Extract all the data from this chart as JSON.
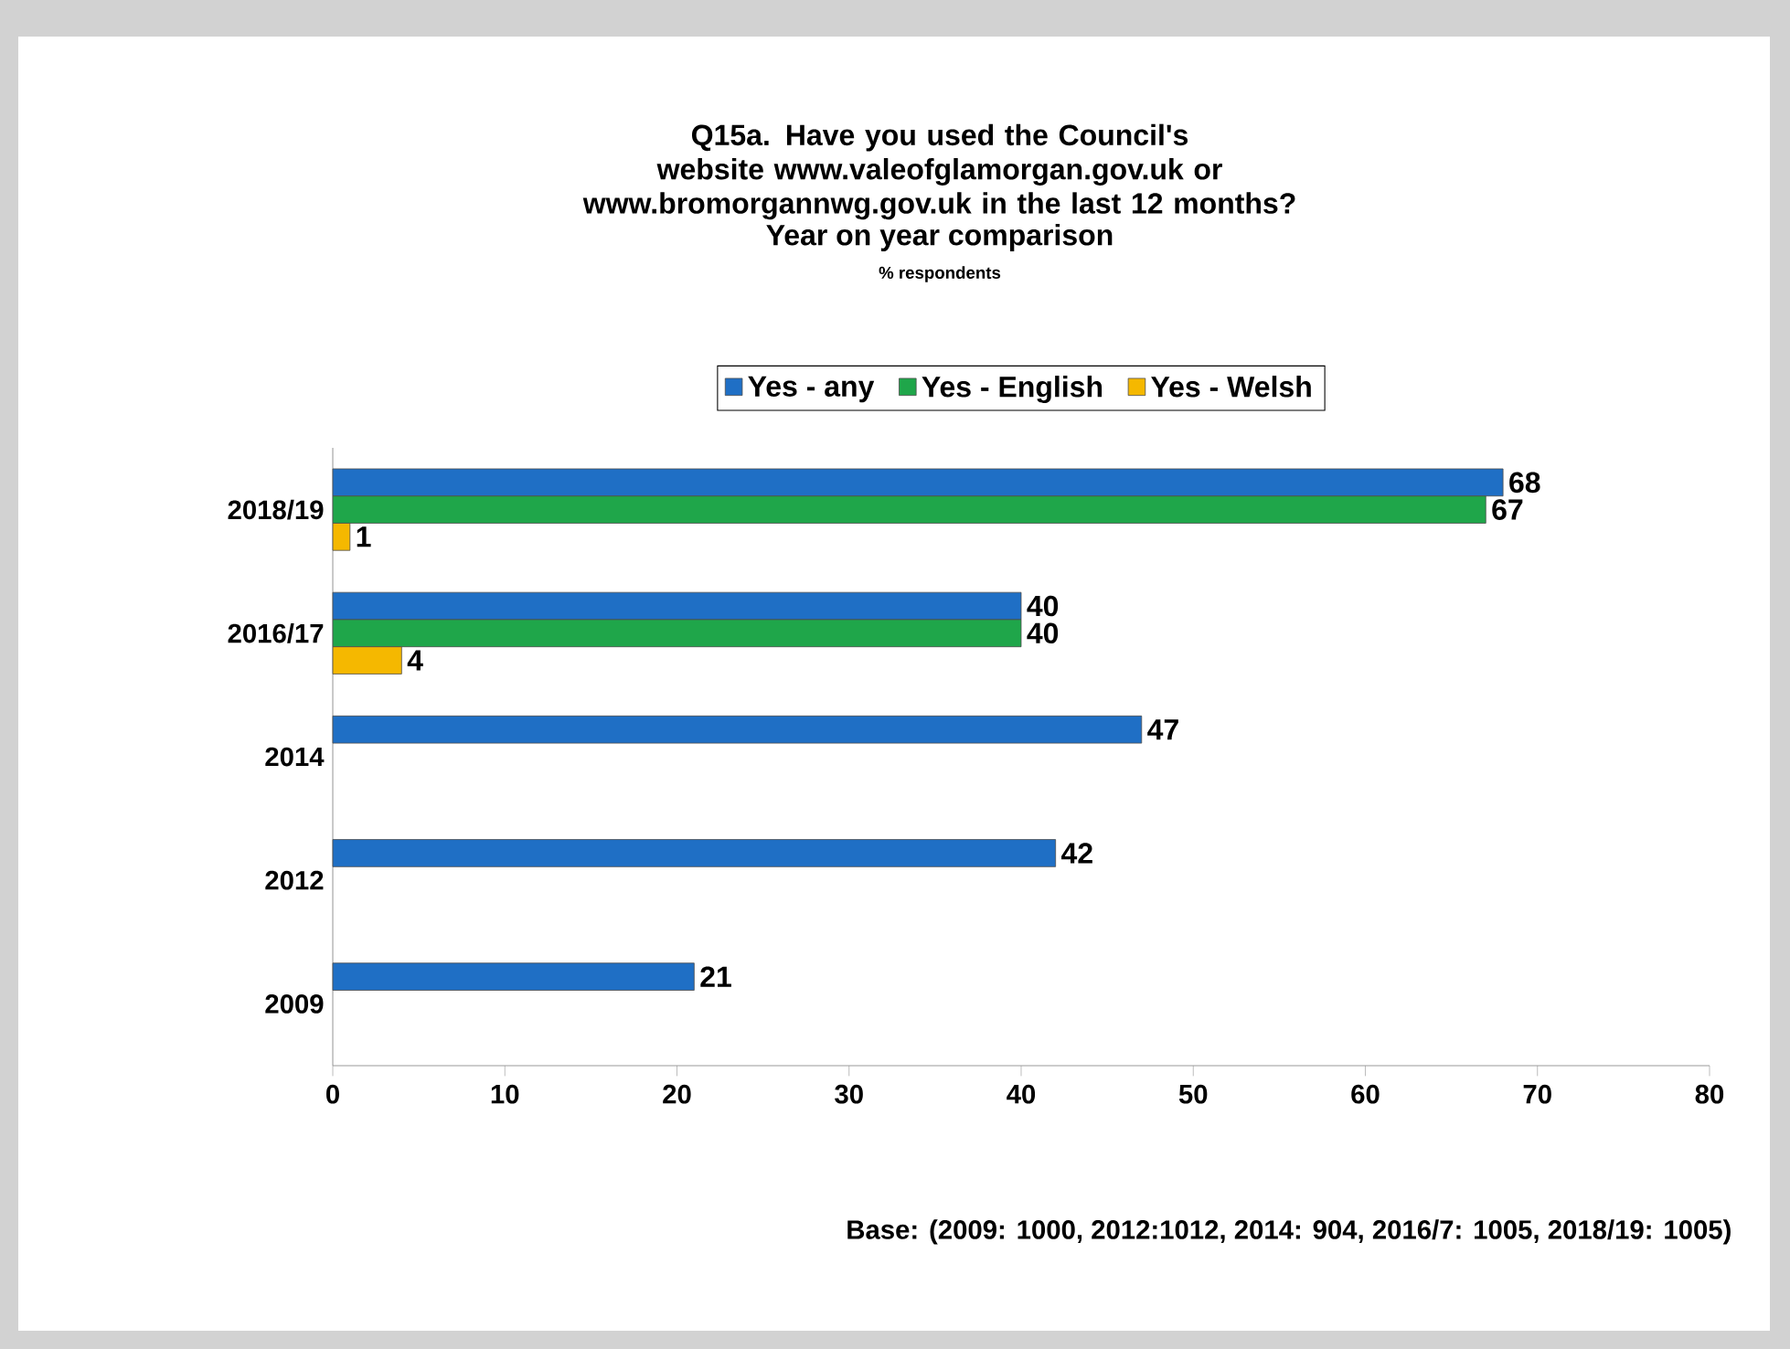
{
  "chart_data": {
    "type": "bar",
    "orientation": "horizontal",
    "title": "Q15a. Have you used the Council's website www.valeofglamorgan.gov.uk or www.bromorgannwg.gov.uk in the last 12 months?",
    "subtitle": "Year on year comparison",
    "annotations": [
      "% respondents",
      "Base: (2009: 1000, 2012:1012, 2014: 904, 2016/7: 1005, 2018/19: 1005)"
    ],
    "categories": [
      "2018/19",
      "2016/17",
      "2014",
      "2012",
      "2009"
    ],
    "series": [
      {
        "name": "Yes - any",
        "color": "#1f6fc5",
        "values": [
          68,
          40,
          47,
          42,
          21
        ]
      },
      {
        "name": "Yes - English",
        "color": "#1fa64a",
        "values": [
          67,
          40,
          null,
          null,
          null
        ]
      },
      {
        "name": "Yes - Welsh",
        "color": "#f5b800",
        "values": [
          1,
          4,
          null,
          null,
          null
        ]
      }
    ],
    "xlim": [
      0,
      80
    ],
    "xticks": [
      0,
      10,
      20,
      30,
      40,
      50,
      60,
      70,
      80
    ],
    "data_labels": true,
    "legend": "top",
    "grid": false
  }
}
